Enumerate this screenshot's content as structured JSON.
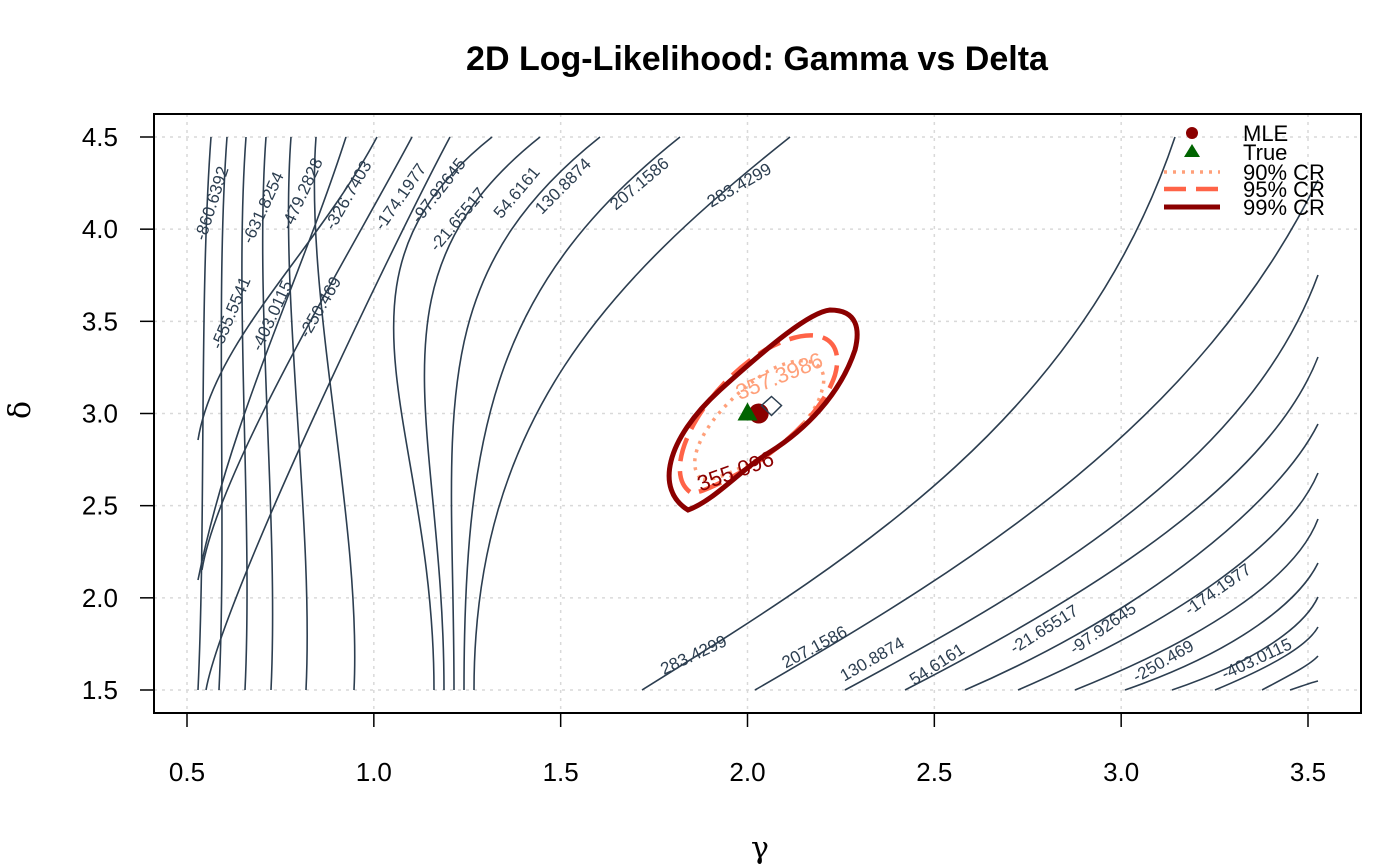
{
  "chart_data": {
    "type": "contour",
    "title": "2D Log-Likelihood: Gamma vs Delta",
    "xlabel": "γ",
    "ylabel": "δ",
    "xlim": [
      0.5,
      3.5
    ],
    "ylim": [
      1.5,
      4.5
    ],
    "x_ticks": [
      "0.5",
      "1.0",
      "1.5",
      "2.0",
      "2.5",
      "3.0",
      "3.5"
    ],
    "y_ticks": [
      "1.5",
      "2.0",
      "2.5",
      "3.0",
      "3.5",
      "4.0",
      "4.5"
    ],
    "grid": true,
    "contour_color": "#2c3e50",
    "mle": {
      "gamma": 2.03,
      "delta": 3.0,
      "color": "#8b0000"
    },
    "true_value": {
      "gamma": 2.0,
      "delta": 3.0,
      "color": "#006400"
    },
    "contour_levels_left": [
      "-860.6392",
      "-631.8254",
      "-479.2828",
      "-326.7403",
      "-174.1977",
      "-97.92645",
      "-21.65517",
      "54.6161",
      "130.8874",
      "207.1586",
      "283.4299",
      "-555.5541",
      "-403.0115",
      "-250.469"
    ],
    "contour_levels_right": [
      "283.4299",
      "207.1586",
      "130.8874",
      "54.6161",
      "-21.65517",
      "-97.92645",
      "-174.1977",
      "-250.469",
      "-403.0115"
    ],
    "confidence_regions": [
      {
        "name": "90% CR",
        "level_label": "357.3986",
        "color": "#ffa07a",
        "style": "dotted"
      },
      {
        "name": "95% CR",
        "level_label": "",
        "color": "#ff6347",
        "style": "dashed"
      },
      {
        "name": "99% CR",
        "level_label": "355.096",
        "color": "#8b0000",
        "style": "solid"
      }
    ],
    "legend": {
      "position": "top-right",
      "entries": [
        "MLE",
        "True",
        "90% CR",
        "95% CR",
        "99% CR"
      ]
    }
  }
}
